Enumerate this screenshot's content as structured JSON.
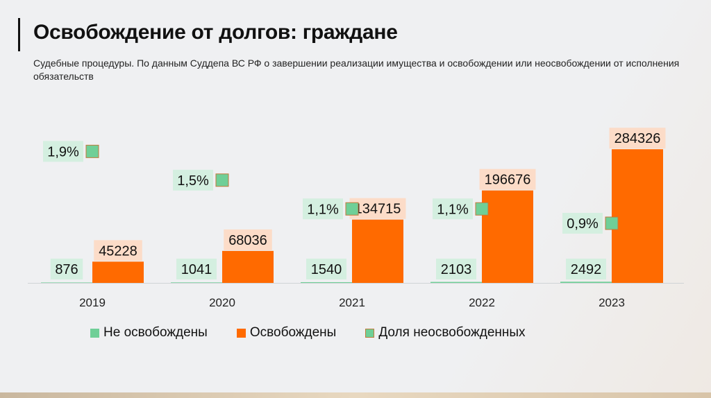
{
  "header": {
    "title": "Освобождение от долгов: граждане",
    "subtitle": "Судебные процедуры. По данным Суддепа ВС РФ о завершении реализации имущества и освобождении или неосвобождении от исполнения обязательств"
  },
  "colors": {
    "not_released": "#6fcf97",
    "released": "#ff6a00",
    "share": "#6fcf97",
    "share_border": "#c07a3a",
    "label_green_bg": "#d4efe0",
    "label_orange_bg": "#fcdcc8"
  },
  "chart_data": {
    "type": "bar",
    "categories": [
      "2019",
      "2020",
      "2021",
      "2022",
      "2023"
    ],
    "series": [
      {
        "name": "Не освобождены",
        "type": "bar",
        "values": [
          876,
          1041,
          1540,
          2103,
          2492
        ],
        "labels": [
          "876",
          "1041",
          "1540",
          "2103",
          "2492"
        ]
      },
      {
        "name": "Освобождены",
        "type": "bar",
        "values": [
          45228,
          68036,
          134715,
          196676,
          284326
        ],
        "labels": [
          "45228",
          "68036",
          "134715",
          "196676",
          "284326"
        ]
      },
      {
        "name": "Доля неосвобожденных",
        "type": "scatter",
        "axis": "secondary",
        "values": [
          1.9,
          1.5,
          1.1,
          1.1,
          0.9
        ],
        "labels": [
          "1,9%",
          "1,5%",
          "1,1%",
          "1,1%",
          "0,9%"
        ]
      }
    ],
    "ylim": [
      0,
      295000
    ],
    "y2lim": [
      0.07,
      2.0
    ],
    "grid": false,
    "legend": "bottom"
  }
}
